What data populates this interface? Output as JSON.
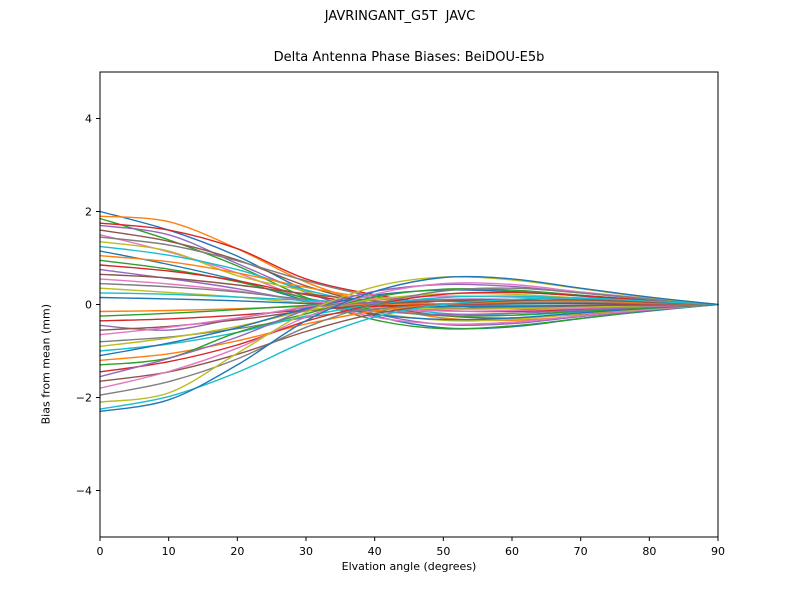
{
  "chart_data": {
    "type": "line",
    "title": "JAVRINGANT_G5T  JAVC",
    "subtitle": "Delta Antenna Phase Biases: BeiDOU-E5b",
    "xlabel": "Elvation angle (degrees)",
    "ylabel": "Bias from mean (mm)",
    "xlim": [
      0,
      90
    ],
    "ylim": [
      -5,
      5
    ],
    "xticks": [
      0,
      10,
      20,
      30,
      40,
      50,
      60,
      70,
      80,
      90
    ],
    "yticks": [
      -4,
      -2,
      0,
      2,
      4
    ],
    "grid": false,
    "legend": "none",
    "x": [
      0,
      10,
      20,
      30,
      40,
      50,
      60,
      70,
      80,
      90
    ],
    "palette": [
      "#1f77b4",
      "#ff7f0e",
      "#2ca02c",
      "#d62728",
      "#9467bd",
      "#8c564b",
      "#e377c2",
      "#7f7f7f",
      "#bcbd22",
      "#17becf"
    ],
    "series": [
      [
        2.0,
        1.6,
        1.04,
        0.3,
        -0.24,
        -0.5,
        -0.48,
        -0.3,
        -0.14,
        0
      ],
      [
        1.9,
        1.78,
        1.2,
        0.48,
        0.0,
        -0.29,
        -0.34,
        -0.25,
        -0.11,
        0
      ],
      [
        1.85,
        1.39,
        0.83,
        0.15,
        -0.33,
        -0.52,
        -0.46,
        -0.3,
        -0.13,
        0
      ],
      [
        1.75,
        1.6,
        1.2,
        0.55,
        0.21,
        0.0,
        -0.09,
        -0.11,
        -0.05,
        0
      ],
      [
        1.7,
        1.5,
        0.88,
        0.26,
        -0.2,
        -0.43,
        -0.41,
        -0.26,
        -0.12,
        0
      ],
      [
        1.6,
        1.36,
        0.96,
        0.4,
        0.0,
        -0.24,
        -0.29,
        -0.21,
        -0.1,
        0
      ],
      [
        1.5,
        1.13,
        0.68,
        0.12,
        -0.27,
        -0.42,
        -0.38,
        -0.24,
        -0.11,
        0
      ],
      [
        1.45,
        1.28,
        0.94,
        0.51,
        0.17,
        0.0,
        -0.07,
        -0.09,
        -0.04,
        0
      ],
      [
        1.35,
        1.15,
        0.62,
        0.28,
        -0.16,
        -0.34,
        -0.32,
        -0.2,
        -0.09,
        0
      ],
      [
        1.25,
        1.06,
        0.75,
        0.31,
        0.0,
        -0.19,
        -0.23,
        -0.16,
        -0.08,
        0
      ],
      [
        1.15,
        0.86,
        0.52,
        0.09,
        -0.21,
        -0.32,
        -0.29,
        -0.18,
        -0.08,
        0
      ],
      [
        1.05,
        0.92,
        0.68,
        0.37,
        0.13,
        0.0,
        -0.05,
        -0.06,
        -0.03,
        0
      ],
      [
        0.95,
        0.76,
        0.49,
        0.14,
        -0.11,
        -0.24,
        -0.23,
        -0.14,
        -0.07,
        0
      ],
      [
        0.85,
        0.72,
        0.51,
        0.21,
        0.0,
        -0.13,
        -0.15,
        -0.11,
        -0.05,
        0
      ],
      [
        0.75,
        0.56,
        0.34,
        0.06,
        -0.14,
        -0.21,
        -0.19,
        -0.12,
        -0.05,
        0
      ],
      [
        0.65,
        0.57,
        0.42,
        0.23,
        0.08,
        0.0,
        -0.03,
        -0.04,
        -0.02,
        0
      ],
      [
        0.55,
        0.44,
        0.29,
        0.08,
        -0.07,
        -0.14,
        -0.13,
        -0.08,
        -0.04,
        0
      ],
      [
        0.45,
        0.38,
        0.27,
        0.11,
        0.0,
        -0.07,
        -0.08,
        -0.06,
        -0.03,
        0
      ],
      [
        0.35,
        0.26,
        0.16,
        0.03,
        -0.06,
        -0.1,
        -0.09,
        -0.06,
        -0.02,
        0
      ],
      [
        0.25,
        0.22,
        0.16,
        0.09,
        0.03,
        0.0,
        -0.01,
        -0.02,
        -0.01,
        0
      ],
      [
        0.15,
        0.12,
        0.08,
        0.02,
        -0.02,
        -0.04,
        -0.04,
        -0.02,
        -0.01,
        0
      ],
      [
        -0.15,
        -0.13,
        -0.09,
        -0.04,
        0.0,
        0.02,
        0.03,
        0.02,
        0.01,
        0
      ],
      [
        -0.25,
        -0.19,
        -0.11,
        -0.02,
        0.05,
        0.07,
        0.06,
        0.04,
        0.02,
        0
      ],
      [
        -0.35,
        -0.31,
        -0.23,
        -0.12,
        -0.04,
        0.0,
        0.02,
        0.02,
        0.01,
        0
      ],
      [
        -0.45,
        -0.55,
        -0.3,
        -0.07,
        0.05,
        0.11,
        0.11,
        0.07,
        0.03,
        0
      ],
      [
        -0.55,
        -0.47,
        -0.33,
        -0.14,
        0.0,
        0.08,
        0.1,
        0.07,
        0.03,
        0
      ],
      [
        -0.65,
        -0.49,
        -0.29,
        -0.05,
        0.12,
        0.18,
        0.16,
        0.1,
        0.05,
        0
      ],
      [
        -0.8,
        -0.7,
        -0.52,
        -0.28,
        -0.1,
        0.0,
        0.04,
        0.05,
        0.02,
        0
      ],
      [
        -0.9,
        -0.72,
        -0.47,
        -0.14,
        0.11,
        0.23,
        0.22,
        0.14,
        0.06,
        0
      ],
      [
        -1.0,
        -0.85,
        -0.6,
        -0.25,
        0.0,
        0.15,
        0.18,
        0.13,
        0.06,
        0
      ],
      [
        -1.1,
        -0.83,
        -0.5,
        -0.09,
        0.2,
        0.31,
        0.28,
        0.18,
        0.08,
        0
      ],
      [
        -1.2,
        -1.06,
        -0.78,
        -0.42,
        -0.14,
        0.0,
        0.06,
        0.07,
        0.04,
        0
      ],
      [
        -1.3,
        -1.15,
        -0.6,
        -0.2,
        0.16,
        0.33,
        0.31,
        0.2,
        0.09,
        0
      ],
      [
        -1.45,
        -1.23,
        -0.87,
        -0.36,
        0.0,
        0.22,
        0.26,
        0.19,
        0.09,
        0
      ],
      [
        -1.55,
        -1.16,
        -0.7,
        -0.12,
        0.28,
        0.43,
        0.39,
        0.25,
        0.11,
        0
      ],
      [
        -1.65,
        -1.45,
        -1.07,
        -0.58,
        -0.2,
        0.0,
        0.08,
        0.1,
        0.05,
        0
      ],
      [
        -1.8,
        -1.44,
        -0.94,
        -0.27,
        0.22,
        0.45,
        0.43,
        0.27,
        0.13,
        0
      ],
      [
        -1.95,
        -1.66,
        -1.17,
        -0.49,
        0.0,
        0.29,
        0.35,
        0.25,
        0.12,
        0
      ],
      [
        -2.1,
        -1.9,
        -1.05,
        -0.17,
        0.38,
        0.59,
        0.53,
        0.34,
        0.15,
        0
      ],
      [
        -2.25,
        -1.98,
        -1.46,
        -0.79,
        -0.27,
        0.0,
        0.11,
        0.14,
        0.07,
        0
      ],
      [
        -2.3,
        -2.05,
        -1.3,
        -0.35,
        0.28,
        0.58,
        0.55,
        0.35,
        0.16,
        0
      ]
    ]
  }
}
